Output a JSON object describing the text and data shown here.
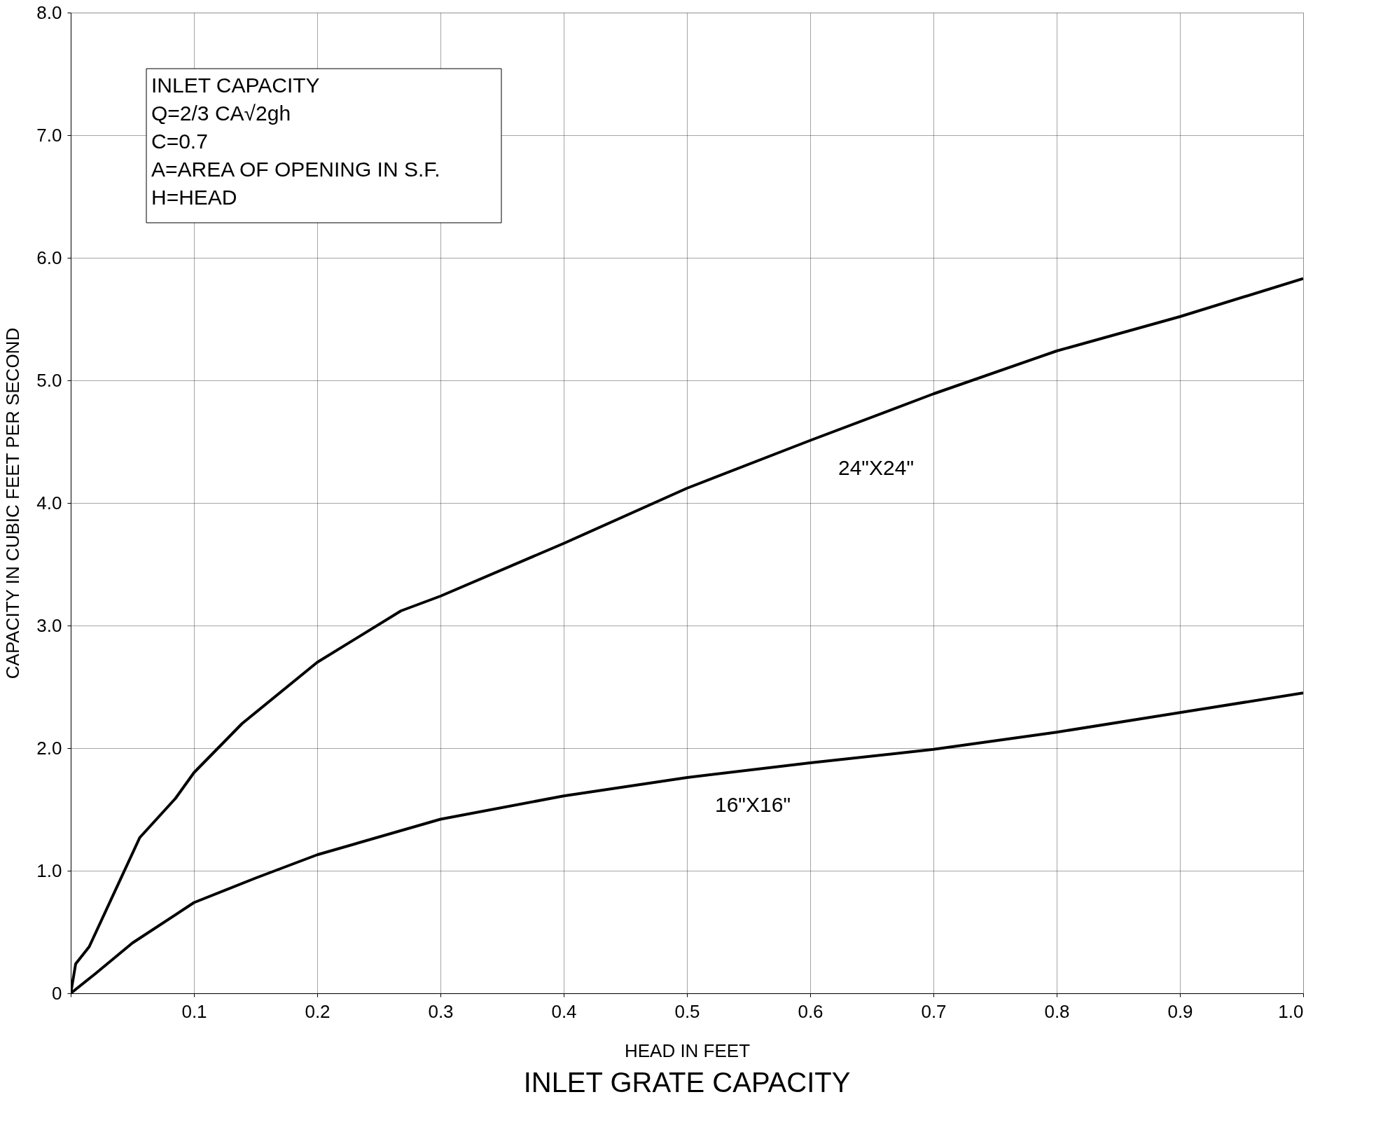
{
  "chart_data": {
    "type": "line",
    "title": "INLET GRATE CAPACITY",
    "xlabel": "HEAD IN FEET",
    "ylabel": "CAPACITY IN CUBIC FEET PER SECOND",
    "xlim": [
      0,
      1.0
    ],
    "ylim": [
      0,
      8.0
    ],
    "xticks": [
      {
        "value": 0,
        "label": null
      },
      0.1,
      0.2,
      0.3,
      0.4,
      0.5,
      0.6,
      0.7,
      0.8,
      0.9,
      {
        "value": 1,
        "label": "1.0"
      }
    ],
    "yticks": [
      0,
      {
        "value": 1,
        "label": "1.0"
      },
      {
        "value": 2,
        "label": "2.0"
      },
      {
        "value": 3,
        "label": "3.0"
      },
      {
        "value": 4,
        "label": "4.0"
      },
      {
        "value": 5,
        "label": "5.0"
      },
      {
        "value": 6,
        "label": "6.0"
      },
      {
        "value": 7,
        "label": "7.0"
      },
      {
        "value": 8,
        "label": "8.0"
      }
    ],
    "grid": true,
    "marker": "none",
    "line_style": "solid",
    "annotations": [
      "INLET CAPACITY",
      "Q=2/3 CA√2gh",
      "C=0.7",
      "A=AREA OF OPENING IN S.F.",
      "H=HEAD"
    ],
    "series": [
      {
        "name": "24\"X24\"",
        "color": "#000000",
        "x": [
          0,
          0.004,
          0.015,
          0.056,
          0.085,
          0.1,
          0.139,
          0.2,
          0.268,
          0.3,
          0.4,
          0.5,
          0.6,
          0.7,
          0.8,
          0.9,
          1.0
        ],
        "values": [
          0,
          0.24,
          0.38,
          1.27,
          1.59,
          1.8,
          2.2,
          2.7,
          3.12,
          3.24,
          3.67,
          4.12,
          4.51,
          4.89,
          5.24,
          5.52,
          5.83
        ]
      },
      {
        "name": "16\"X16\"",
        "color": "#000000",
        "x": [
          0,
          0.02,
          0.05,
          0.1,
          0.15,
          0.2,
          0.3,
          0.4,
          0.5,
          0.6,
          0.7,
          0.8,
          0.9,
          1.0
        ],
        "values": [
          0,
          0.16,
          0.41,
          0.74,
          0.94,
          1.13,
          1.42,
          1.61,
          1.76,
          1.88,
          1.99,
          2.13,
          2.29,
          2.45
        ]
      }
    ]
  }
}
